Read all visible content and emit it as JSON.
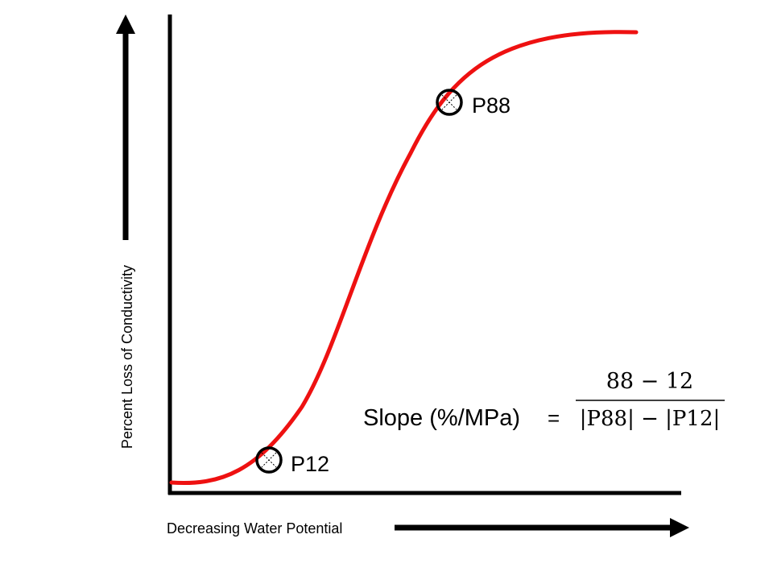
{
  "diagram": {
    "y_axis_label": "Percent Loss of Conductivity",
    "x_axis_label": "Decreasing Water Potential",
    "points": [
      {
        "id": "p12",
        "label": "P12"
      },
      {
        "id": "p88",
        "label": "P88"
      }
    ],
    "formula": {
      "lhs": "Slope (%/MPa)",
      "equals": "=",
      "numerator": "88 − 12",
      "denominator": "|P88| − |P12|"
    },
    "colors": {
      "curve": "#ee1111",
      "axis": "#000000",
      "marker": "#000000"
    }
  }
}
